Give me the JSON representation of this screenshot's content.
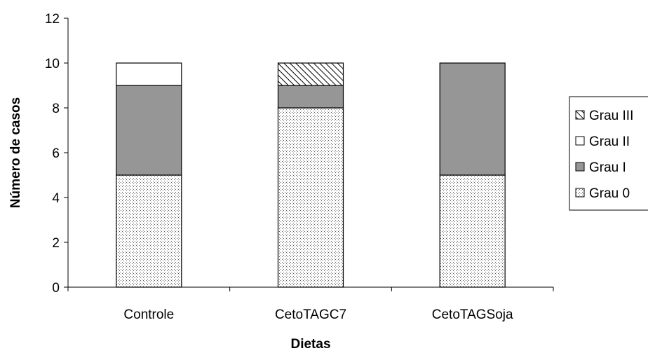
{
  "chart_data": {
    "type": "bar",
    "stacked": true,
    "categories": [
      "Controle",
      "CetoTAGC7",
      "CetoTAGSoja"
    ],
    "series": [
      {
        "name": "Grau 0",
        "values": [
          5,
          8,
          5
        ],
        "pattern": "dots",
        "color": "#ffffff"
      },
      {
        "name": "Grau I",
        "values": [
          4,
          1,
          5
        ],
        "pattern": "solid",
        "color": "#969696"
      },
      {
        "name": "Grau II",
        "values": [
          1,
          0,
          0
        ],
        "pattern": "solid",
        "color": "#ffffff"
      },
      {
        "name": "Grau III",
        "values": [
          0,
          1,
          0
        ],
        "pattern": "diagonal",
        "color": "#ffffff"
      }
    ],
    "xlabel": "Dietas",
    "ylabel": "Número de casos",
    "ylim": [
      0,
      12
    ],
    "yticks": [
      "0",
      "2",
      "4",
      "6",
      "8",
      "10",
      "12"
    ],
    "legend_order": [
      "Grau III",
      "Grau II",
      "Grau I",
      "Grau 0"
    ],
    "legend_position": "right",
    "grid": false
  }
}
